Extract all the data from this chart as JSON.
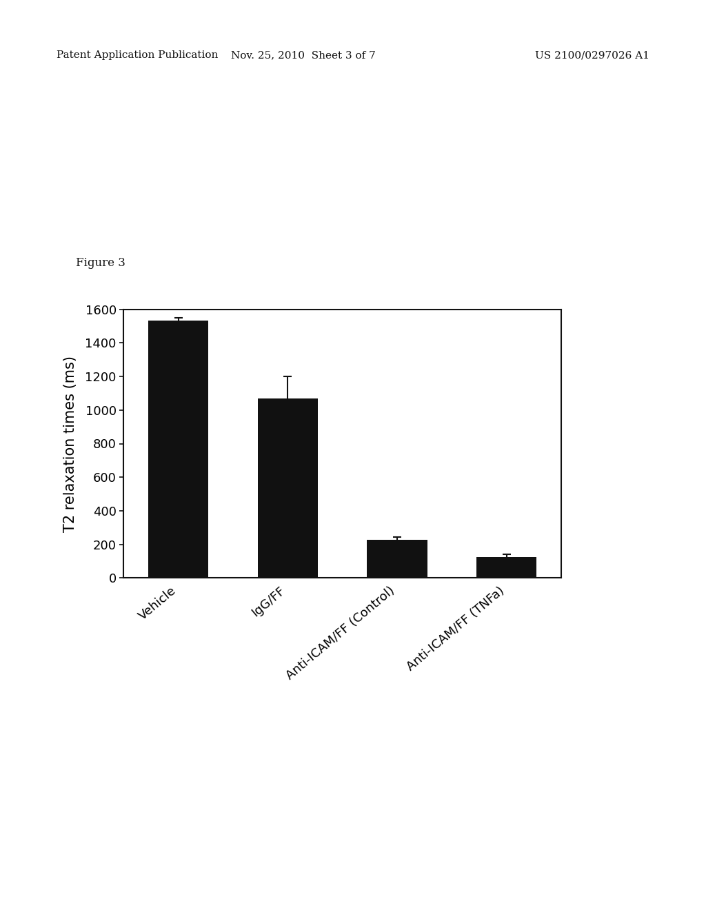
{
  "categories": [
    "Vehicle",
    "IgG/FF",
    "Anti-ICAM/FF (Control)",
    "Anti-ICAM/FF (TNFa)"
  ],
  "values": [
    1535,
    1070,
    225,
    125
  ],
  "errors": [
    15,
    130,
    20,
    15
  ],
  "bar_color": "#111111",
  "bar_width": 0.55,
  "ylabel": "T2 relaxation times (ms)",
  "ylim": [
    0,
    1600
  ],
  "yticks": [
    0,
    200,
    400,
    600,
    800,
    1000,
    1200,
    1400,
    1600
  ],
  "figure_label": "Figure 3",
  "header_left": "Patent Application Publication",
  "header_center": "Nov. 25, 2010  Sheet 3 of 7",
  "header_right": "US 2100/0297026 A1",
  "bg_color": "#ffffff",
  "ylabel_fontsize": 15,
  "tick_fontsize": 13,
  "header_fontsize": 11,
  "figure_label_fontsize": 12,
  "xtick_fontsize": 13
}
